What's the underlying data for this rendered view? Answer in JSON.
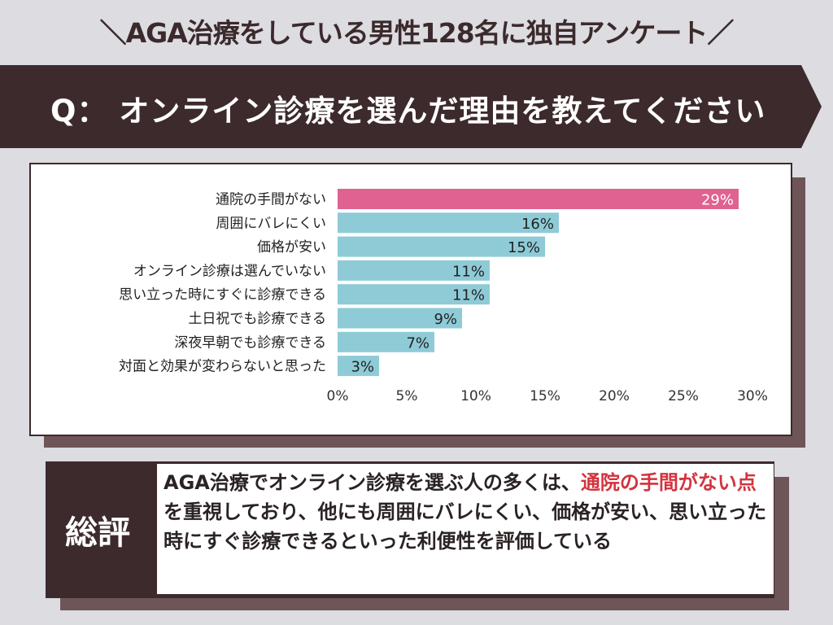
{
  "title": "＼AGA治療をしている男性128名に独自アンケート／",
  "question": "Q： オンライン診療を選んだ理由を教えてください",
  "chart_data": {
    "type": "bar",
    "orientation": "horizontal",
    "categories": [
      "通院の手間がない",
      "周囲にバレにくい",
      "価格が安い",
      "オンライン診療は選んでいない",
      "思い立った時にすぐに診療できる",
      "土日祝でも診療できる",
      "深夜早朝でも診療できる",
      "対面と効果が変わらないと思った"
    ],
    "values": [
      29,
      16,
      15,
      11,
      11,
      9,
      7,
      3
    ],
    "data_labels": [
      "29%",
      "16%",
      "15%",
      "11%",
      "11%",
      "9%",
      "7%",
      "3%"
    ],
    "xlim": [
      0,
      30
    ],
    "xticks": [
      "0%",
      "5%",
      "10%",
      "15%",
      "20%",
      "25%",
      "30%"
    ],
    "colors": {
      "highlight": "#e06290",
      "default": "#8ecbd7"
    }
  },
  "summary": {
    "label": "総評",
    "text_before": "AGA治療でオンライン診療を選ぶ人の多くは、",
    "highlight": "通院の手間がない点",
    "text_after": "を重視しており、他にも周囲にバレにくい、価格が安い、思い立った時にすぐ診療できるといった利便性を評価している"
  }
}
